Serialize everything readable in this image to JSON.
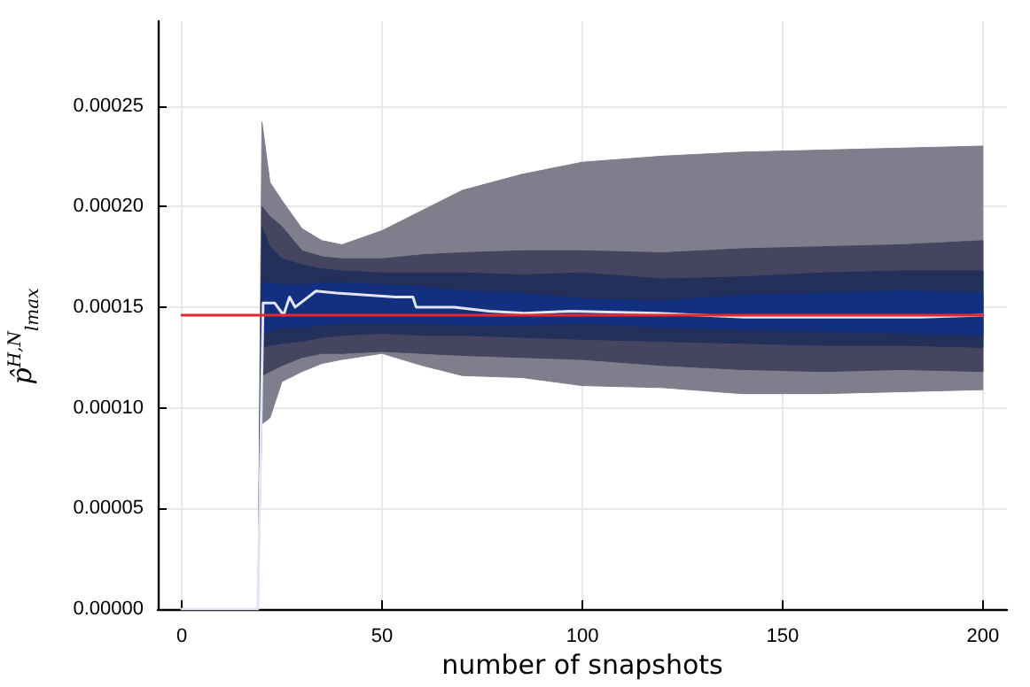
{
  "chart_data": {
    "type": "line",
    "xlabel": "number of snapshots",
    "ylabel": "p̂$^{H,N}$$_{lmax}$",
    "xlim": [
      -6,
      206
    ],
    "xticks": [
      0,
      50,
      100,
      150,
      200
    ],
    "ylim": [
      0,
      0.000292
    ],
    "yticks": [
      {
        "value": 0,
        "label": "0.00000"
      },
      {
        "value": 5e-05,
        "label": "0.00005"
      },
      {
        "value": 0.0001,
        "label": "0.00010"
      },
      {
        "value": 0.00015,
        "label": "0.00015"
      },
      {
        "value": 0.0002,
        "label": "0.00020"
      },
      {
        "value": 0.00025,
        "label": "0.00025"
      }
    ],
    "grid": true,
    "series": [
      {
        "type": "line",
        "color": "#7f7e8c",
        "x": [
          0,
          19,
          20,
          22,
          25,
          30,
          35,
          40,
          50,
          60,
          70,
          85,
          100,
          120,
          140,
          160,
          180,
          200
        ],
        "values": [
          null,
          null,
          null,
          null,
          null,
          null,
          null,
          null,
          null,
          null,
          null,
          null,
          null,
          null,
          null,
          null,
          null,
          null
        ],
        "lower": [
          0,
          0,
          9.2e-05,
          9.5e-05,
          0.000113,
          0.000118,
          0.000122,
          0.000124,
          0.000127,
          0.000121,
          0.000116,
          0.000115,
          0.000111,
          0.00011,
          0.000107,
          0.000107,
          0.000108,
          0.000109
        ],
        "upper": [
          0,
          0,
          0.000242,
          0.000212,
          0.000203,
          0.000189,
          0.000183,
          0.000181,
          0.000188,
          0.000198,
          0.000208,
          0.000216,
          0.000222,
          0.000225,
          0.000227,
          0.000228,
          0.000229,
          0.00023
        ]
      },
      {
        "type": "line",
        "color": "#45455f",
        "x": [
          0,
          19,
          20,
          22,
          25,
          30,
          35,
          40,
          50,
          60,
          70,
          85,
          100,
          120,
          140,
          160,
          180,
          200
        ],
        "values": [
          null,
          null,
          null,
          null,
          null,
          null,
          null,
          null,
          null,
          null,
          null,
          null,
          null,
          null,
          null,
          null,
          null,
          null
        ],
        "lower": [
          0,
          0,
          0.000116,
          0.000118,
          0.000121,
          0.000125,
          0.000127,
          0.000127,
          0.000128,
          0.000127,
          0.000126,
          0.000125,
          0.000124,
          0.000121,
          0.000119,
          0.000118,
          0.000119,
          0.000118
        ],
        "upper": [
          0,
          0,
          0.0002,
          0.000195,
          0.00019,
          0.000178,
          0.000175,
          0.000174,
          0.000174,
          0.000176,
          0.000177,
          0.000178,
          0.000178,
          0.000177,
          0.000179,
          0.00018,
          0.000181,
          0.000183
        ]
      },
      {
        "type": "line",
        "color": "#23305a",
        "x": [
          0,
          19,
          20,
          22,
          25,
          30,
          35,
          40,
          50,
          60,
          70,
          85,
          100,
          120,
          140,
          160,
          180,
          200
        ],
        "values": [
          null,
          null,
          null,
          null,
          null,
          null,
          null,
          null,
          null,
          null,
          null,
          null,
          null,
          null,
          null,
          null,
          null,
          null
        ],
        "lower": [
          0,
          0,
          0.00013,
          0.000131,
          0.000132,
          0.000133,
          0.000135,
          0.000136,
          0.000137,
          0.000136,
          0.000136,
          0.000135,
          0.000134,
          0.000133,
          0.000132,
          0.000131,
          0.000131,
          0.00013
        ],
        "upper": [
          0,
          0,
          0.00019,
          0.00018,
          0.000174,
          0.000171,
          0.000169,
          0.000168,
          0.000167,
          0.000167,
          0.000167,
          0.000166,
          0.000167,
          0.000164,
          0.000165,
          0.000167,
          0.000168,
          0.000168
        ]
      },
      {
        "type": "line",
        "color": "#12307f",
        "x": [
          0,
          19,
          20,
          22,
          25,
          30,
          35,
          40,
          50,
          60,
          70,
          85,
          100,
          120,
          140,
          160,
          180,
          200
        ],
        "values": [
          null,
          null,
          null,
          null,
          null,
          null,
          null,
          null,
          null,
          null,
          null,
          null,
          null,
          null,
          null,
          null,
          null,
          null
        ],
        "lower": [
          0,
          0,
          0.000136,
          0.000138,
          0.00014,
          0.00014,
          0.000141,
          0.000142,
          0.000142,
          0.000142,
          0.000141,
          0.000141,
          0.000142,
          0.00014,
          0.000139,
          0.000138,
          0.000137,
          0.000136
        ],
        "upper": [
          0,
          0,
          0.000162,
          0.000162,
          0.000161,
          0.000161,
          0.000162,
          0.000162,
          0.000161,
          0.00016,
          0.000158,
          0.000157,
          0.000154,
          0.000153,
          0.000156,
          0.000157,
          0.000158,
          0.000157
        ]
      },
      {
        "type": "line",
        "color": "#e2e6f4",
        "x": [
          0,
          19,
          20.3,
          23.2,
          25.4,
          26.9,
          28.3,
          33.5,
          38.6,
          46,
          53.3,
          57.7,
          58.5,
          68,
          76.7,
          85.5,
          97,
          118.5,
          140.5,
          162.6,
          184.6,
          200
        ],
        "values": [
          0,
          0,
          0.000152,
          0.000152,
          0.000146,
          0.000155,
          0.00015,
          0.000158,
          0.000157,
          0.000156,
          0.000155,
          0.000155,
          0.00015,
          0.00015,
          0.000148,
          0.000147,
          0.000148,
          0.000147,
          0.000145,
          0.000145,
          0.000145,
          0.000146
        ]
      },
      {
        "type": "line",
        "color": "#e8272b",
        "x": [
          0,
          200
        ],
        "values": [
          0.000146,
          0.000146
        ]
      }
    ]
  }
}
